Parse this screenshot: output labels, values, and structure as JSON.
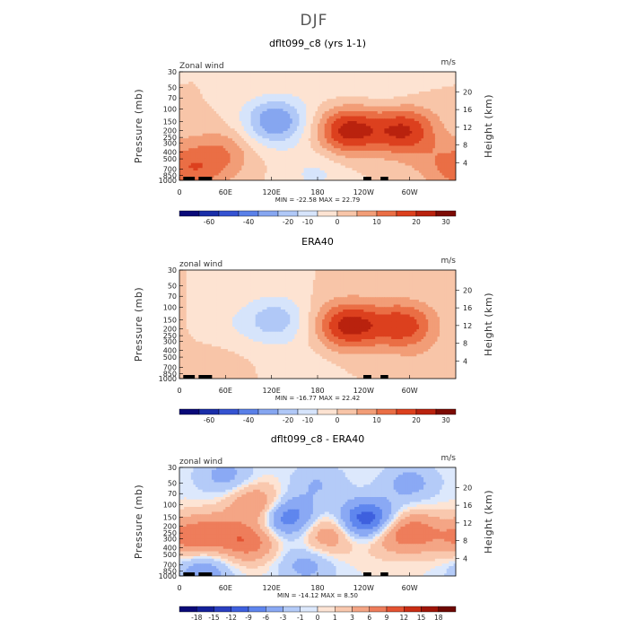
{
  "figure_title": "DJF",
  "chart_data": [
    {
      "type": "heatmap",
      "title": "dflt099_c8 (yrs 1-1)",
      "left_label": "Zonal wind",
      "right_label": "m/s",
      "ylabel": "Pressure (mb)",
      "ylabel_right": "Height (km)",
      "pressure_ticks": [
        "30",
        "50",
        "70",
        "100",
        "150",
        "200",
        "250",
        "300",
        "400",
        "500",
        "700",
        "850",
        "1000"
      ],
      "height_ticks": [
        "4",
        "8",
        "12",
        "16",
        "20"
      ],
      "x_ticks": [
        "0",
        "60E",
        "120E",
        "180",
        "120W",
        "60W"
      ],
      "min_max": "MIN = -22.58   MAX =  22.79",
      "min": -22.58,
      "max": 22.79,
      "colorbar_labels": [
        "-60",
        "-40",
        "-20",
        "-10",
        "0",
        "10",
        "20",
        "30"
      ],
      "features": [
        {
          "lon": 125,
          "p": 150,
          "value": -20
        },
        {
          "lon": 178,
          "p": 800,
          "value": -6
        },
        {
          "lon": 220,
          "p": 200,
          "value": 22
        },
        {
          "lon": 293,
          "p": 200,
          "value": 20
        },
        {
          "lon": 55,
          "p": 400,
          "value": 9
        },
        {
          "lon": 20,
          "p": 750,
          "value": 10
        },
        {
          "lon": 340,
          "p": 600,
          "value": 6
        },
        {
          "lon": 270,
          "p": 50,
          "value": -4
        },
        {
          "lon": 200,
          "p": 50,
          "value": -3
        }
      ]
    },
    {
      "type": "heatmap",
      "title": "ERA40",
      "left_label": "zonal wind",
      "right_label": "m/s",
      "ylabel": "Pressure (mb)",
      "ylabel_right": "Height (km)",
      "pressure_ticks": [
        "30",
        "50",
        "70",
        "100",
        "150",
        "200",
        "250",
        "300",
        "400",
        "500",
        "700",
        "850",
        "1000"
      ],
      "height_ticks": [
        "4",
        "8",
        "12",
        "16",
        "20"
      ],
      "x_ticks": [
        "0",
        "60E",
        "120E",
        "180",
        "120W",
        "60W"
      ],
      "min_max": "MIN = -16.77   MAX =  22.42",
      "min": -16.77,
      "max": 22.42,
      "colorbar_labels": [
        "-60",
        "-40",
        "-20",
        "-10",
        "0",
        "10",
        "20",
        "30"
      ],
      "features": [
        {
          "lon": 125,
          "p": 150,
          "value": -13
        },
        {
          "lon": 60,
          "p": 180,
          "value": -3
        },
        {
          "lon": 165,
          "p": 700,
          "value": -3
        },
        {
          "lon": 220,
          "p": 180,
          "value": 22
        },
        {
          "lon": 292,
          "p": 180,
          "value": 18
        },
        {
          "lon": 40,
          "p": 700,
          "value": 3
        },
        {
          "lon": 330,
          "p": 900,
          "value": 4
        }
      ]
    },
    {
      "type": "heatmap",
      "title": "dflt099_c8 - ERA40",
      "left_label": "zonal wind",
      "right_label": "m/s",
      "ylabel": "Pressure (mb)",
      "ylabel_right": "Height (km)",
      "pressure_ticks": [
        "30",
        "50",
        "70",
        "100",
        "150",
        "200",
        "250",
        "300",
        "400",
        "500",
        "700",
        "850",
        "1000"
      ],
      "height_ticks": [
        "4",
        "8",
        "12",
        "16",
        "20"
      ],
      "x_ticks": [
        "0",
        "60E",
        "120E",
        "180",
        "120W",
        "60W"
      ],
      "min_max": "MIN = -14.12   MAX =   8.50",
      "min": -14.12,
      "max": 8.5,
      "colorbar_labels": [
        "-18",
        "-15",
        "-12",
        "-9",
        "-6",
        "-3",
        "-1",
        "0",
        "1",
        "3",
        "6",
        "9",
        "12",
        "15",
        "18"
      ],
      "features": [
        {
          "lon": 245,
          "p": 170,
          "value": -13
        },
        {
          "lon": 140,
          "p": 150,
          "value": -9
        },
        {
          "lon": 100,
          "p": 100,
          "value": 7
        },
        {
          "lon": 40,
          "p": 250,
          "value": 6
        },
        {
          "lon": 90,
          "p": 330,
          "value": 8
        },
        {
          "lon": 195,
          "p": 260,
          "value": 6
        },
        {
          "lon": 268,
          "p": 260,
          "value": 5
        },
        {
          "lon": 305,
          "p": 240,
          "value": 7
        },
        {
          "lon": 5,
          "p": 300,
          "value": 5
        },
        {
          "lon": 180,
          "p": 50,
          "value": -3
        },
        {
          "lon": 60,
          "p": 40,
          "value": -4
        },
        {
          "lon": 300,
          "p": 50,
          "value": -4
        },
        {
          "lon": 165,
          "p": 700,
          "value": -4
        },
        {
          "lon": 30,
          "p": 850,
          "value": -5
        }
      ]
    }
  ]
}
